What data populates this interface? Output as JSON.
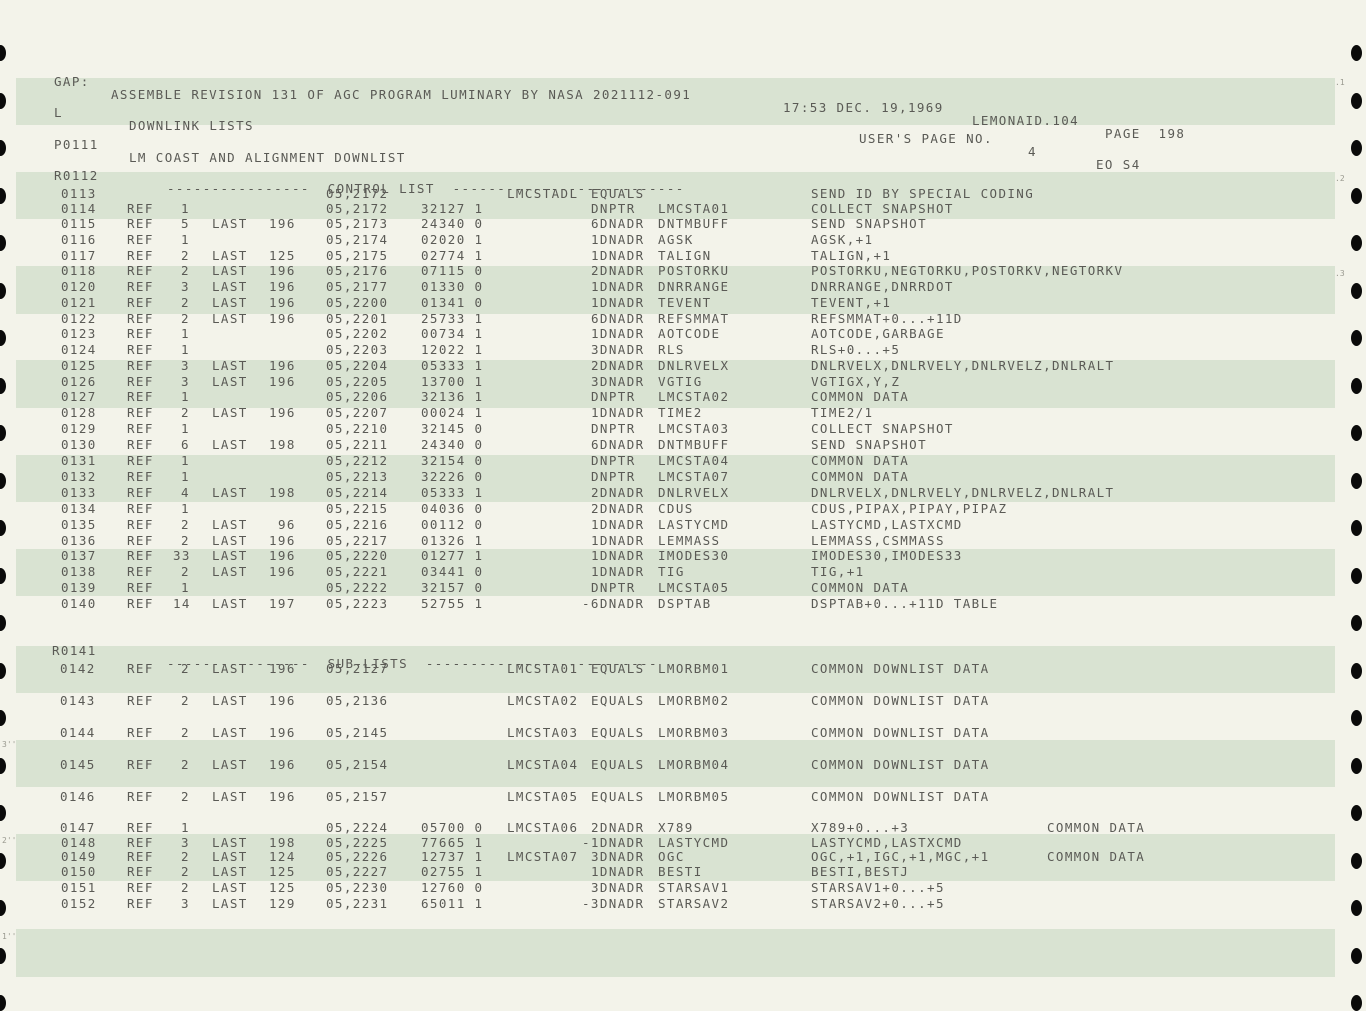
{
  "header": {
    "gap": "GAP:",
    "title": "ASSEMBLE REVISION 131 OF AGC PROGRAM LUMINARY BY NASA 2021112-091",
    "time": "17:53 DEC. 19,1969",
    "lemonaid": "LEMONAID.104",
    "page": "PAGE  198"
  },
  "subheader": {
    "l": "L",
    "section": "DOWNLINK LISTS",
    "users_page": "USER'S PAGE NO.",
    "users_page_num": "4",
    "eo": "EO S4"
  },
  "list_title": {
    "id": "P0111",
    "text": "LM COAST AND ALIGNMENT DOWNLIST"
  },
  "control_header": {
    "id": "R0112",
    "text": "----------------  CONTROL LIST  --------------------------"
  },
  "sublist_header": {
    "id": "R0141",
    "text": "----------------  SUB-LISTS  --------------------------"
  },
  "rows": [
    {
      "id": "0113",
      "ref": "",
      "n": "",
      "last": "",
      "lnum": "",
      "addr": "05,2172",
      "code": "",
      "label": "LMCSTADL",
      "op": "EQUALS",
      "operand": "",
      "comment": "SEND ID BY SPECIAL CODING",
      "extra": ""
    },
    {
      "id": "0114",
      "ref": "REF",
      "n": "1",
      "last": "",
      "lnum": "",
      "addr": "05,2172",
      "code": "32127 1",
      "label": "",
      "op": "DNPTR",
      "operand": "LMCSTA01",
      "comment": "COLLECT SNAPSHOT",
      "extra": ""
    },
    {
      "id": "0115",
      "ref": "REF",
      "n": "5",
      "last": "LAST",
      "lnum": "196",
      "addr": "05,2173",
      "code": "24340 0",
      "label": "",
      "op": "6DNADR",
      "operand": "DNTMBUFF",
      "comment": "SEND SNAPSHOT",
      "extra": ""
    },
    {
      "id": "0116",
      "ref": "REF",
      "n": "1",
      "last": "",
      "lnum": "",
      "addr": "05,2174",
      "code": "02020 1",
      "label": "",
      "op": "1DNADR",
      "operand": "AGSK",
      "comment": "AGSK,+1",
      "extra": ""
    },
    {
      "id": "0117",
      "ref": "REF",
      "n": "2",
      "last": "LAST",
      "lnum": "125",
      "addr": "05,2175",
      "code": "02774 1",
      "label": "",
      "op": "1DNADR",
      "operand": "TALIGN",
      "comment": "TALIGN,+1",
      "extra": ""
    },
    {
      "id": "0118",
      "ref": "REF",
      "n": "2",
      "last": "LAST",
      "lnum": "196",
      "addr": "05,2176",
      "code": "07115 0",
      "label": "",
      "op": "2DNADR",
      "operand": "POSTORKU",
      "comment": "POSTORKU,NEGTORKU,POSTORKV,NEGTORKV",
      "extra": ""
    },
    {
      "id": "0120",
      "ref": "REF",
      "n": "3",
      "last": "LAST",
      "lnum": "196",
      "addr": "05,2177",
      "code": "01330 0",
      "label": "",
      "op": "1DNADR",
      "operand": "DNRRANGE",
      "comment": "DNRRANGE,DNRRDOT",
      "extra": ""
    },
    {
      "id": "0121",
      "ref": "REF",
      "n": "2",
      "last": "LAST",
      "lnum": "196",
      "addr": "05,2200",
      "code": "01341 0",
      "label": "",
      "op": "1DNADR",
      "operand": "TEVENT",
      "comment": "TEVENT,+1",
      "extra": ""
    },
    {
      "id": "0122",
      "ref": "REF",
      "n": "2",
      "last": "LAST",
      "lnum": "196",
      "addr": "05,2201",
      "code": "25733 1",
      "label": "",
      "op": "6DNADR",
      "operand": "REFSMMAT",
      "comment": "REFSMMAT+0...+11D",
      "extra": ""
    },
    {
      "id": "0123",
      "ref": "REF",
      "n": "1",
      "last": "",
      "lnum": "",
      "addr": "05,2202",
      "code": "00734 1",
      "label": "",
      "op": "1DNADR",
      "operand": "AOTCODE",
      "comment": "AOTCODE,GARBAGE",
      "extra": ""
    },
    {
      "id": "0124",
      "ref": "REF",
      "n": "1",
      "last": "",
      "lnum": "",
      "addr": "05,2203",
      "code": "12022 1",
      "label": "",
      "op": "3DNADR",
      "operand": "RLS",
      "comment": "RLS+0...+5",
      "extra": ""
    },
    {
      "id": "0125",
      "ref": "REF",
      "n": "3",
      "last": "LAST",
      "lnum": "196",
      "addr": "05,2204",
      "code": "05333 1",
      "label": "",
      "op": "2DNADR",
      "operand": "DNLRVELX",
      "comment": "DNLRVELX,DNLRVELY,DNLRVELZ,DNLRALT",
      "extra": ""
    },
    {
      "id": "0126",
      "ref": "REF",
      "n": "3",
      "last": "LAST",
      "lnum": "196",
      "addr": "05,2205",
      "code": "13700 1",
      "label": "",
      "op": "3DNADR",
      "operand": "VGTIG",
      "comment": "VGTIGX,Y,Z",
      "extra": ""
    },
    {
      "id": "0127",
      "ref": "REF",
      "n": "1",
      "last": "",
      "lnum": "",
      "addr": "05,2206",
      "code": "32136 1",
      "label": "",
      "op": "DNPTR",
      "operand": "LMCSTA02",
      "comment": "COMMON DATA",
      "extra": ""
    },
    {
      "id": "0128",
      "ref": "REF",
      "n": "2",
      "last": "LAST",
      "lnum": "196",
      "addr": "05,2207",
      "code": "00024 1",
      "label": "",
      "op": "1DNADR",
      "operand": "TIME2",
      "comment": "TIME2/1",
      "extra": ""
    },
    {
      "id": "0129",
      "ref": "REF",
      "n": "1",
      "last": "",
      "lnum": "",
      "addr": "05,2210",
      "code": "32145 0",
      "label": "",
      "op": "DNPTR",
      "operand": "LMCSTA03",
      "comment": "COLLECT SNAPSHOT",
      "extra": ""
    },
    {
      "id": "0130",
      "ref": "REF",
      "n": "6",
      "last": "LAST",
      "lnum": "198",
      "addr": "05,2211",
      "code": "24340 0",
      "label": "",
      "op": "6DNADR",
      "operand": "DNTMBUFF",
      "comment": "SEND SNAPSHOT",
      "extra": ""
    },
    {
      "id": "0131",
      "ref": "REF",
      "n": "1",
      "last": "",
      "lnum": "",
      "addr": "05,2212",
      "code": "32154 0",
      "label": "",
      "op": "DNPTR",
      "operand": "LMCSTA04",
      "comment": "COMMON DATA",
      "extra": ""
    },
    {
      "id": "0132",
      "ref": "REF",
      "n": "1",
      "last": "",
      "lnum": "",
      "addr": "05,2213",
      "code": "32226 0",
      "label": "",
      "op": "DNPTR",
      "operand": "LMCSTA07",
      "comment": "COMMON DATA",
      "extra": ""
    },
    {
      "id": "0133",
      "ref": "REF",
      "n": "4",
      "last": "LAST",
      "lnum": "198",
      "addr": "05,2214",
      "code": "05333 1",
      "label": "",
      "op": "2DNADR",
      "operand": "DNLRVELX",
      "comment": "DNLRVELX,DNLRVELY,DNLRVELZ,DNLRALT",
      "extra": ""
    },
    {
      "id": "0134",
      "ref": "REF",
      "n": "1",
      "last": "",
      "lnum": "",
      "addr": "05,2215",
      "code": "04036 0",
      "label": "",
      "op": "2DNADR",
      "operand": "CDUS",
      "comment": "CDUS,PIPAX,PIPAY,PIPAZ",
      "extra": ""
    },
    {
      "id": "0135",
      "ref": "REF",
      "n": "2",
      "last": "LAST",
      "lnum": "96",
      "addr": "05,2216",
      "code": "00112 0",
      "label": "",
      "op": "1DNADR",
      "operand": "LASTYCMD",
      "comment": "LASTYCMD,LASTXCMD",
      "extra": ""
    },
    {
      "id": "0136",
      "ref": "REF",
      "n": "2",
      "last": "LAST",
      "lnum": "196",
      "addr": "05,2217",
      "code": "01326 1",
      "label": "",
      "op": "1DNADR",
      "operand": "LEMMASS",
      "comment": "LEMMASS,CSMMASS",
      "extra": ""
    },
    {
      "id": "0137",
      "ref": "REF",
      "n": "33",
      "last": "LAST",
      "lnum": "196",
      "addr": "05,2220",
      "code": "01277 1",
      "label": "",
      "op": "1DNADR",
      "operand": "IMODES30",
      "comment": "IMODES30,IMODES33",
      "extra": ""
    },
    {
      "id": "0138",
      "ref": "REF",
      "n": "2",
      "last": "LAST",
      "lnum": "196",
      "addr": "05,2221",
      "code": "03441 0",
      "label": "",
      "op": "1DNADR",
      "operand": "TIG",
      "comment": "TIG,+1",
      "extra": ""
    },
    {
      "id": "0139",
      "ref": "REF",
      "n": "1",
      "last": "",
      "lnum": "",
      "addr": "05,2222",
      "code": "32157 0",
      "label": "",
      "op": "DNPTR",
      "operand": "LMCSTA05",
      "comment": "COMMON DATA",
      "extra": ""
    },
    {
      "id": "0140",
      "ref": "REF",
      "n": "14",
      "last": "LAST",
      "lnum": "197",
      "addr": "05,2223",
      "code": "52755 1",
      "label": "",
      "op": "-6DNADR",
      "operand": "DSPTAB",
      "comment": "DSPTAB+0...+11D TABLE",
      "extra": ""
    },
    {
      "id": "0142",
      "ref": "REF",
      "n": "2",
      "last": "LAST",
      "lnum": "196",
      "addr": "05,2127",
      "code": "",
      "label": "LMCSTA01",
      "op": "EQUALS",
      "operand": "LMORBM01",
      "comment": "COMMON DOWNLIST DATA",
      "extra": ""
    },
    {
      "id": "0143",
      "ref": "REF",
      "n": "2",
      "last": "LAST",
      "lnum": "196",
      "addr": "05,2136",
      "code": "",
      "label": "LMCSTA02",
      "op": "EQUALS",
      "operand": "LMORBM02",
      "comment": "COMMON DOWNLIST DATA",
      "extra": ""
    },
    {
      "id": "0144",
      "ref": "REF",
      "n": "2",
      "last": "LAST",
      "lnum": "196",
      "addr": "05,2145",
      "code": "",
      "label": "LMCSTA03",
      "op": "EQUALS",
      "operand": "LMORBM03",
      "comment": "COMMON DOWNLIST DATA",
      "extra": ""
    },
    {
      "id": "0145",
      "ref": "REF",
      "n": "2",
      "last": "LAST",
      "lnum": "196",
      "addr": "05,2154",
      "code": "",
      "label": "LMCSTA04",
      "op": "EQUALS",
      "operand": "LMORBM04",
      "comment": "COMMON DOWNLIST DATA",
      "extra": ""
    },
    {
      "id": "0146",
      "ref": "REF",
      "n": "2",
      "last": "LAST",
      "lnum": "196",
      "addr": "05,2157",
      "code": "",
      "label": "LMCSTA05",
      "op": "EQUALS",
      "operand": "LMORBM05",
      "comment": "COMMON DOWNLIST DATA",
      "extra": ""
    },
    {
      "id": "0147",
      "ref": "REF",
      "n": "1",
      "last": "",
      "lnum": "",
      "addr": "05,2224",
      "code": "05700 0",
      "label": "LMCSTA06",
      "op": "2DNADR",
      "operand": "X789",
      "comment": "X789+0...+3",
      "extra": "COMMON DATA"
    },
    {
      "id": "0148",
      "ref": "REF",
      "n": "3",
      "last": "LAST",
      "lnum": "198",
      "addr": "05,2225",
      "code": "77665 1",
      "label": "",
      "op": "-1DNADR",
      "operand": "LASTYCMD",
      "comment": "LASTYCMD,LASTXCMD",
      "extra": ""
    },
    {
      "id": "0149",
      "ref": "REF",
      "n": "2",
      "last": "LAST",
      "lnum": "124",
      "addr": "05,2226",
      "code": "12737 1",
      "label": "LMCSTA07",
      "op": "3DNADR",
      "operand": "OGC",
      "comment": "OGC,+1,IGC,+1,MGC,+1",
      "extra": "COMMON DATA"
    },
    {
      "id": "0150",
      "ref": "REF",
      "n": "2",
      "last": "LAST",
      "lnum": "125",
      "addr": "05,2227",
      "code": "02755 1",
      "label": "",
      "op": "1DNADR",
      "operand": "BESTI",
      "comment": "BESTI,BESTJ",
      "extra": ""
    },
    {
      "id": "0151",
      "ref": "REF",
      "n": "2",
      "last": "LAST",
      "lnum": "125",
      "addr": "05,2230",
      "code": "12760 0",
      "label": "",
      "op": "3DNADR",
      "operand": "STARSAV1",
      "comment": "STARSAV1+0...+5",
      "extra": ""
    },
    {
      "id": "0152",
      "ref": "REF",
      "n": "3",
      "last": "LAST",
      "lnum": "129",
      "addr": "05,2231",
      "code": "65011 1",
      "label": "",
      "op": "-3DNADR",
      "operand": "STARSAV2",
      "comment": "STARSAV2+0...+5",
      "extra": ""
    }
  ],
  "margin_marks": [
    ".1",
    ".2",
    ".3",
    "3''",
    "2''",
    "1''"
  ]
}
